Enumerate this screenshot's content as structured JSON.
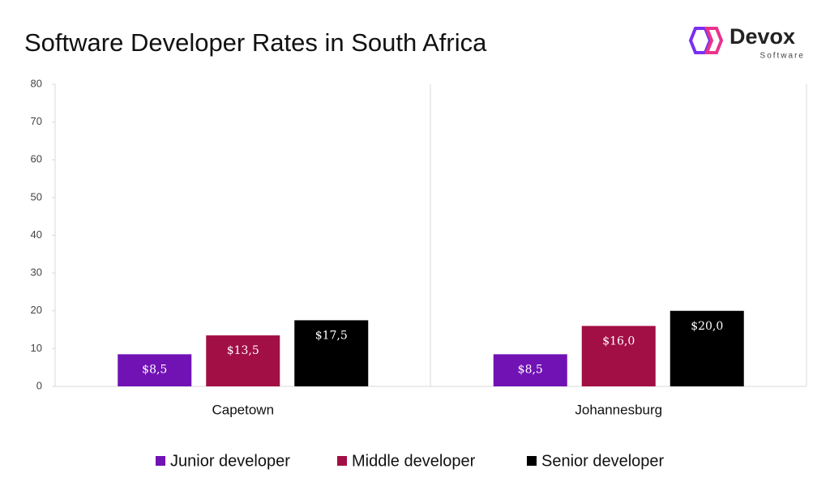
{
  "chart_data": {
    "type": "bar",
    "title": "Software Developer Rates in South Africa",
    "categories": [
      "Capetown",
      "Johannesburg"
    ],
    "series": [
      {
        "name": "Junior developer",
        "color": "#7112b5",
        "values": [
          8.5,
          8.5
        ],
        "value_labels": [
          "$8,5",
          "$8,5"
        ]
      },
      {
        "name": "Middle developer",
        "color": "#a20f44",
        "values": [
          13.5,
          16.0
        ],
        "value_labels": [
          "$13,5",
          "$16,0"
        ]
      },
      {
        "name": "Senior developer",
        "color": "#000000",
        "values": [
          17.5,
          20.0
        ],
        "value_labels": [
          "$17,5",
          "$20,0"
        ]
      }
    ],
    "ylim": [
      0,
      80
    ],
    "yticks": [
      0,
      10,
      20,
      30,
      40,
      50,
      60,
      70,
      80
    ],
    "legend": "bottom"
  },
  "logo": {
    "name": "Devox",
    "tagline": "Software"
  }
}
